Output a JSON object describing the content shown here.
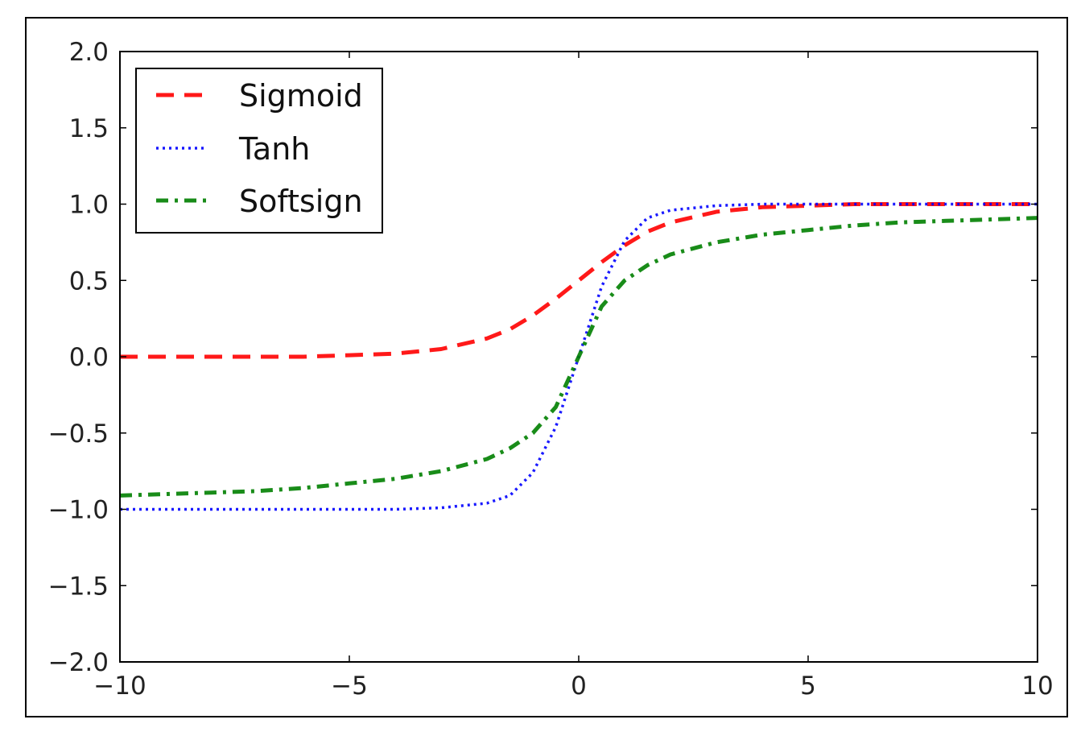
{
  "chart_data": {
    "type": "line",
    "title": "",
    "xlabel": "",
    "ylabel": "",
    "xlim": [
      -10,
      10
    ],
    "ylim": [
      -2.0,
      2.0
    ],
    "x_ticks": [
      -10,
      -5,
      0,
      5,
      10
    ],
    "x_tick_labels": [
      "−10",
      "−5",
      "0",
      "5",
      "10"
    ],
    "y_ticks": [
      2.0,
      1.5,
      1.0,
      0.5,
      0.0,
      -0.5,
      -1.0,
      -1.5,
      -2.0
    ],
    "y_tick_labels": [
      "2.0",
      "1.5",
      "1.0",
      "0.5",
      "0.0",
      "−0.5",
      "−1.0",
      "−1.5",
      "−2.0"
    ],
    "grid": false,
    "legend_position": "top-left",
    "x": [
      -10,
      -9,
      -8,
      -7,
      -6,
      -5,
      -4,
      -3,
      -2,
      -1.5,
      -1,
      -0.5,
      0,
      0.5,
      1,
      1.5,
      2,
      3,
      4,
      5,
      6,
      7,
      8,
      9,
      10
    ],
    "series": [
      {
        "name": "Sigmoid",
        "color": "#ff0000",
        "style": "dashed",
        "values": [
          0.0,
          0.0,
          0.0,
          0.0,
          0.0,
          0.01,
          0.02,
          0.05,
          0.12,
          0.18,
          0.27,
          0.38,
          0.5,
          0.62,
          0.73,
          0.82,
          0.88,
          0.95,
          0.98,
          0.99,
          1.0,
          1.0,
          1.0,
          1.0,
          1.0
        ]
      },
      {
        "name": "Tanh",
        "color": "#0000ff",
        "style": "dotted",
        "values": [
          -1.0,
          -1.0,
          -1.0,
          -1.0,
          -1.0,
          -1.0,
          -1.0,
          -0.99,
          -0.96,
          -0.91,
          -0.76,
          -0.46,
          0.0,
          0.46,
          0.76,
          0.91,
          0.96,
          0.99,
          1.0,
          1.0,
          1.0,
          1.0,
          1.0,
          1.0,
          1.0
        ]
      },
      {
        "name": "Softsign",
        "color": "#007f00",
        "style": "dashdot",
        "values": [
          -0.91,
          -0.9,
          -0.89,
          -0.88,
          -0.86,
          -0.83,
          -0.8,
          -0.75,
          -0.67,
          -0.6,
          -0.5,
          -0.33,
          0.0,
          0.33,
          0.5,
          0.6,
          0.67,
          0.75,
          0.8,
          0.83,
          0.86,
          0.88,
          0.89,
          0.9,
          0.91
        ]
      }
    ]
  }
}
